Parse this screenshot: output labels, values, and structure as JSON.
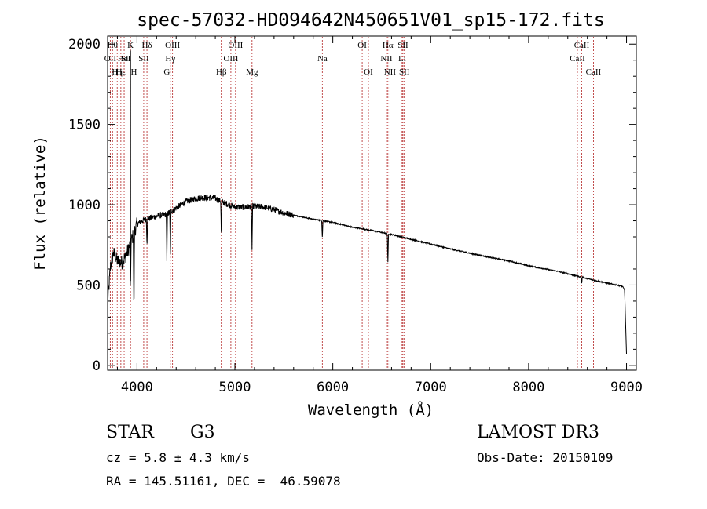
{
  "chart_data": {
    "type": "line",
    "title": "spec-57032-HD094642N450651V01_sp15-172.fits",
    "xlabel": "Wavelength (Å)",
    "ylabel": "Flux (relative)",
    "xlim": [
      3700,
      9100
    ],
    "ylim": [
      -30,
      2050
    ],
    "x_ticks": [
      4000,
      5000,
      6000,
      7000,
      8000,
      9000
    ],
    "y_ticks": [
      0,
      500,
      1000,
      1500,
      2000
    ],
    "continuum": {
      "x": [
        3700,
        3730,
        3760,
        3800,
        3850,
        3900,
        3950,
        4000,
        4050,
        4100,
        4200,
        4300,
        4400,
        4500,
        4600,
        4700,
        4800,
        4900,
        5000,
        5100,
        5200,
        5300,
        5400,
        5500,
        5600,
        5800,
        6000,
        6200,
        6400,
        6600,
        6700,
        6900,
        7200,
        7500,
        7800,
        8000,
        8300,
        8500,
        8700,
        8900,
        8960,
        8980,
        9000
      ],
      "y": [
        380,
        620,
        700,
        650,
        640,
        700,
        790,
        880,
        900,
        910,
        930,
        940,
        980,
        1020,
        1040,
        1045,
        1040,
        1010,
        985,
        985,
        990,
        985,
        970,
        950,
        935,
        910,
        890,
        860,
        840,
        815,
        800,
        770,
        725,
        685,
        650,
        620,
        585,
        555,
        525,
        500,
        490,
        470,
        70
      ]
    },
    "absorption": [
      {
        "x": 3933.7,
        "y": 400,
        "label": "K"
      },
      {
        "x": 3968.5,
        "y": 300,
        "label": "H"
      },
      {
        "x": 4101.7,
        "y": 750,
        "label": "Hδ"
      },
      {
        "x": 4305,
        "y": 640,
        "label": "G"
      },
      {
        "x": 4340.5,
        "y": 660,
        "label": "Hγ"
      },
      {
        "x": 4861.3,
        "y": 780,
        "label": "Hβ"
      },
      {
        "x": 5175,
        "y": 720,
        "label": "Mg"
      },
      {
        "x": 5893,
        "y": 790,
        "label": "Na"
      },
      {
        "x": 6562.8,
        "y": 630,
        "label": "Hα"
      },
      {
        "x": 8542,
        "y": 505,
        "label": "CaII"
      }
    ],
    "emission_spike": {
      "x": 3934,
      "y": 1960
    },
    "line_markers": [
      {
        "x": 3727.0,
        "label": "OII",
        "row": 2
      },
      {
        "x": 3750.2,
        "label": "Hθ",
        "row": 1
      },
      {
        "x": 3797.9,
        "label": "Hη",
        "row": 3
      },
      {
        "x": 3835.4,
        "label": "Hε",
        "row": 3
      },
      {
        "x": 3868.7,
        "label": "HeI",
        "row": 2
      },
      {
        "x": 3889.0,
        "label": "SII",
        "row": 2
      },
      {
        "x": 3933.7,
        "label": "K",
        "row": 1
      },
      {
        "x": 3968.5,
        "label": "H",
        "row": 3
      },
      {
        "x": 4068.6,
        "label": "SII",
        "row": 2
      },
      {
        "x": 4101.7,
        "label": "Hδ",
        "row": 1
      },
      {
        "x": 4305.0,
        "label": "G",
        "row": 3
      },
      {
        "x": 4340.5,
        "label": "Hγ",
        "row": 2
      },
      {
        "x": 4363.2,
        "label": "OIII",
        "row": 1
      },
      {
        "x": 4861.3,
        "label": "Hβ",
        "row": 3
      },
      {
        "x": 4959.0,
        "label": "OIII",
        "row": 2
      },
      {
        "x": 5006.8,
        "label": "OIII",
        "row": 1
      },
      {
        "x": 5175.0,
        "label": "Mg",
        "row": 3
      },
      {
        "x": 5893.0,
        "label": "Na",
        "row": 2
      },
      {
        "x": 6300.3,
        "label": "OI",
        "row": 1
      },
      {
        "x": 6363.8,
        "label": "OI",
        "row": 3
      },
      {
        "x": 6548.1,
        "label": "NII",
        "row": 2
      },
      {
        "x": 6562.8,
        "label": "Hα",
        "row": 1
      },
      {
        "x": 6583.5,
        "label": "NII",
        "row": 3
      },
      {
        "x": 6707.8,
        "label": "Li",
        "row": 2
      },
      {
        "x": 6716.4,
        "label": "SII",
        "row": 1
      },
      {
        "x": 6730.8,
        "label": "SII",
        "row": 3
      },
      {
        "x": 8498.0,
        "label": "CaII",
        "row": 2
      },
      {
        "x": 8542.1,
        "label": "CaII",
        "row": 1
      },
      {
        "x": 8662.1,
        "label": "CaII",
        "row": 3
      }
    ],
    "colors": {
      "spectrum": "#000000",
      "markers": "#b22222",
      "axes": "#000000"
    }
  },
  "info": {
    "object_class": "STAR",
    "subclass": "G3",
    "survey": "LAMOST DR3",
    "cz": "cz = 5.8 ± 4.3 km/s",
    "obs_date": "Obs-Date: 20150109",
    "coords": "RA = 145.51161, DEC =  46.59078"
  }
}
